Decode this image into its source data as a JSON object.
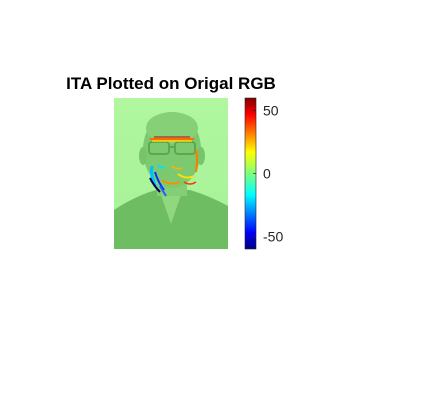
{
  "chart_data": {
    "type": "heatmap",
    "title": "ITA Plotted on Origal RGB",
    "xlabel": "",
    "ylabel": "",
    "image": {
      "description_tag": "face-photo-overlay",
      "base_color": "#aaf59a",
      "overlay_color": "#6fbf63"
    },
    "colorbar": {
      "colormap": "jet",
      "clim": [
        -60,
        60
      ],
      "ticks": [
        50,
        0,
        -50
      ],
      "tick_labels": [
        "50",
        "0",
        "-50"
      ]
    }
  }
}
